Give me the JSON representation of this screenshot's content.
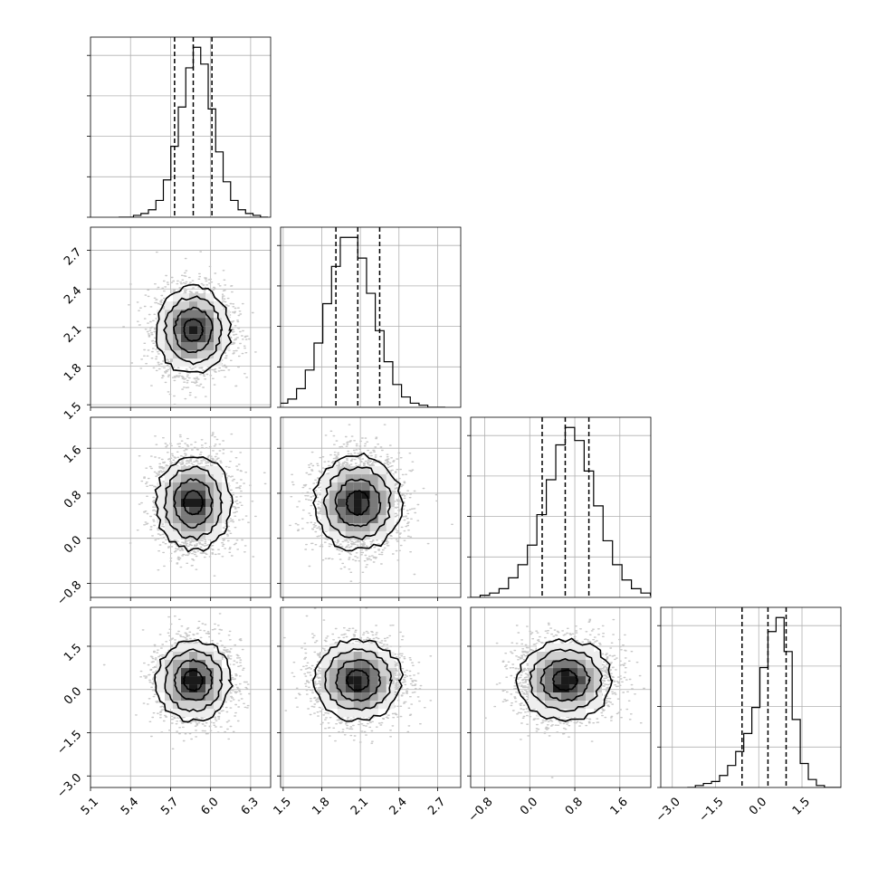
{
  "chart_data": {
    "type": "corner",
    "grid": true,
    "parameters": [
      {
        "range": [
          5.1,
          6.45
        ],
        "ticks": [
          "5.1",
          "5.4",
          "5.7",
          "6.0",
          "6.3"
        ],
        "tick_values": [
          5.1,
          5.4,
          5.7,
          6.0,
          6.3
        ],
        "mean": 5.87,
        "std": 0.14,
        "quantiles": [
          5.73,
          5.87,
          6.01
        ],
        "hist_counts": [
          0,
          0,
          1,
          2,
          4,
          9,
          20,
          38,
          59,
          80,
          91,
          82,
          58,
          35,
          19,
          9,
          4,
          2,
          1,
          0
        ]
      },
      {
        "range": [
          1.48,
          2.88
        ],
        "ticks": [
          "1.5",
          "1.8",
          "2.1",
          "2.4",
          "2.7"
        ],
        "tick_values": [
          1.5,
          1.8,
          2.1,
          2.4,
          2.7
        ],
        "mean": 2.08,
        "std": 0.17,
        "quantiles": [
          1.91,
          2.08,
          2.25
        ],
        "hist_counts": [
          1,
          2,
          4,
          9,
          18,
          31,
          50,
          68,
          82,
          82,
          72,
          55,
          37,
          22,
          11,
          5,
          2,
          1,
          0,
          0
        ]
      },
      {
        "range": [
          -1.05,
          2.15
        ],
        "ticks": [
          "-0.8",
          "0.0",
          "0.8",
          "1.6"
        ],
        "tick_values": [
          -0.8,
          0.0,
          0.8,
          1.6
        ],
        "mean": 0.63,
        "std": 0.42,
        "quantiles": [
          0.22,
          0.63,
          1.05
        ],
        "hist_counts": [
          0,
          1,
          2,
          4,
          9,
          15,
          24,
          38,
          54,
          70,
          78,
          72,
          58,
          42,
          26,
          15,
          8,
          4,
          2,
          1
        ]
      },
      {
        "range": [
          -3.4,
          2.85
        ],
        "ticks": [
          "-3.0",
          "-1.5",
          "0.0",
          "1.5"
        ],
        "tick_values": [
          -3.0,
          -1.5,
          0.0,
          1.5
        ],
        "mean": 0.32,
        "std": 0.7,
        "quantiles": [
          -0.58,
          0.32,
          0.95
        ],
        "hist_counts": [
          0,
          1,
          2,
          3,
          6,
          11,
          18,
          27,
          40,
          60,
          78,
          85,
          68,
          34,
          12,
          4,
          1,
          0,
          0,
          0
        ]
      }
    ]
  }
}
